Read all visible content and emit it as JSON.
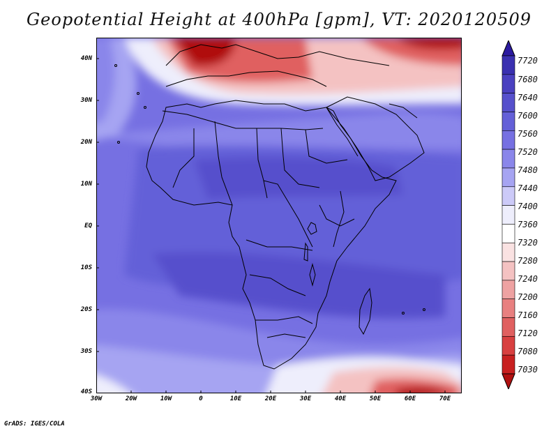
{
  "title": "Geopotential Height at 400hPa [gpm], VT: 2020120509",
  "credit": "GrADS: IGES/COLA",
  "map": {
    "lat_range": [
      -40,
      45
    ],
    "lon_range": [
      -30,
      75
    ],
    "lat_ticks": [
      "40N",
      "30N",
      "20N",
      "10N",
      "EQ",
      "10S",
      "20S",
      "30S",
      "40S"
    ],
    "lon_ticks": [
      "30W",
      "20W",
      "10W",
      "0",
      "10E",
      "20E",
      "30E",
      "40E",
      "50E",
      "60E",
      "70E"
    ],
    "region": "Africa"
  },
  "colorbar": {
    "levels": [
      "7720",
      "7680",
      "7640",
      "7600",
      "7560",
      "7520",
      "7480",
      "7440",
      "7400",
      "7360",
      "7320",
      "7280",
      "7240",
      "7200",
      "7160",
      "7120",
      "7080",
      "7030"
    ],
    "colors": [
      "#2b1aa0",
      "#3a30b0",
      "#4a40c0",
      "#5650cc",
      "#6460d8",
      "#7670e2",
      "#8a86ea",
      "#a6a4f2",
      "#cccaf8",
      "#eeeefc",
      "#ffffff",
      "#fae2e2",
      "#f4c2c2",
      "#eea2a2",
      "#e88080",
      "#e06060",
      "#d84040",
      "#c82020",
      "#b01010"
    ]
  }
}
